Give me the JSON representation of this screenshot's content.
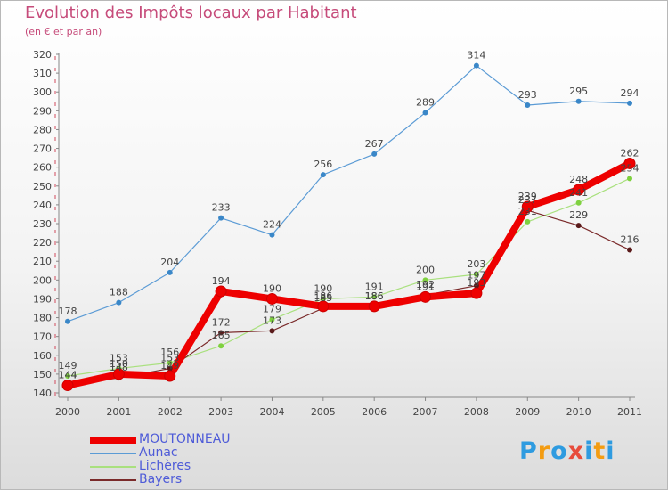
{
  "chart_data": {
    "type": "line",
    "title": "Evolution des Impôts locaux par Habitant",
    "subtitle": "(en € et par an)",
    "xlabel": "",
    "ylabel": "",
    "categories": [
      "2000",
      "2001",
      "2002",
      "2003",
      "2004",
      "2005",
      "2006",
      "2007",
      "2008",
      "2009",
      "2010",
      "2011"
    ],
    "ylim": [
      140,
      320
    ],
    "yticks": [
      140,
      150,
      160,
      170,
      180,
      190,
      200,
      210,
      220,
      230,
      240,
      250,
      260,
      270,
      280,
      290,
      300,
      310,
      320
    ],
    "grid": false,
    "legend_position": "bottom-left",
    "series": [
      {
        "name": "Aunac",
        "color": "#5b9bd5",
        "dot": "#3a87c8",
        "width": 1.2,
        "values": [
          178,
          188,
          204,
          233,
          224,
          256,
          267,
          289,
          314,
          293,
          295,
          294
        ],
        "labels": [
          "178",
          "188",
          "204",
          "233",
          "224",
          "256",
          "267",
          "289",
          "314",
          "293",
          "295",
          "294"
        ]
      },
      {
        "name": "Lichères",
        "color": "#a9e07e",
        "dot": "#7fd13f",
        "width": 1.2,
        "values": [
          149,
          153,
          156,
          165,
          179,
          190,
          191,
          200,
          203,
          231,
          241,
          254
        ],
        "labels": [
          "149",
          "153",
          "156",
          "165",
          "179",
          "190",
          "191",
          "200",
          "203",
          "231",
          "241",
          "254"
        ]
      },
      {
        "name": "Bayers",
        "color": "#7a2a2a",
        "dot": "#5a1a1a",
        "width": 1.2,
        "values": [
          144,
          148,
          153,
          172,
          173,
          185,
          186,
          192,
          197,
          237,
          229,
          216
        ],
        "labels": [
          "144",
          "148",
          "153",
          "172",
          "173",
          "185",
          "186",
          "192",
          "197",
          "237",
          "229",
          "216"
        ]
      },
      {
        "name": "MOUTONNEAU",
        "color": "#ee0000",
        "dot": "#ee0000",
        "width": 8,
        "values": [
          144,
          150,
          149,
          194,
          190,
          186,
          186,
          191,
          193,
          239,
          248,
          262
        ],
        "labels": [
          "144",
          "150",
          "149",
          "194",
          "190",
          "186",
          "186",
          "191",
          "193",
          "239",
          "248",
          "262"
        ]
      }
    ]
  },
  "legend": [
    {
      "label": "MOUTONNEAU",
      "color": "#ee0000",
      "thickness": 8
    },
    {
      "label": "Aunac",
      "color": "#5b9bd5",
      "thickness": 2
    },
    {
      "label": "Lichères",
      "color": "#a9e07e",
      "thickness": 2
    },
    {
      "label": "Bayers",
      "color": "#7a2a2a",
      "thickness": 2
    }
  ],
  "logo": {
    "letters": [
      "P",
      "r",
      "o",
      "x",
      "i",
      "t",
      "i"
    ],
    "colors": [
      "#2e9be0",
      "#f39c12",
      "#2e9be0",
      "#e74c3c",
      "#2e9be0",
      "#f39c12",
      "#2e9be0"
    ]
  }
}
